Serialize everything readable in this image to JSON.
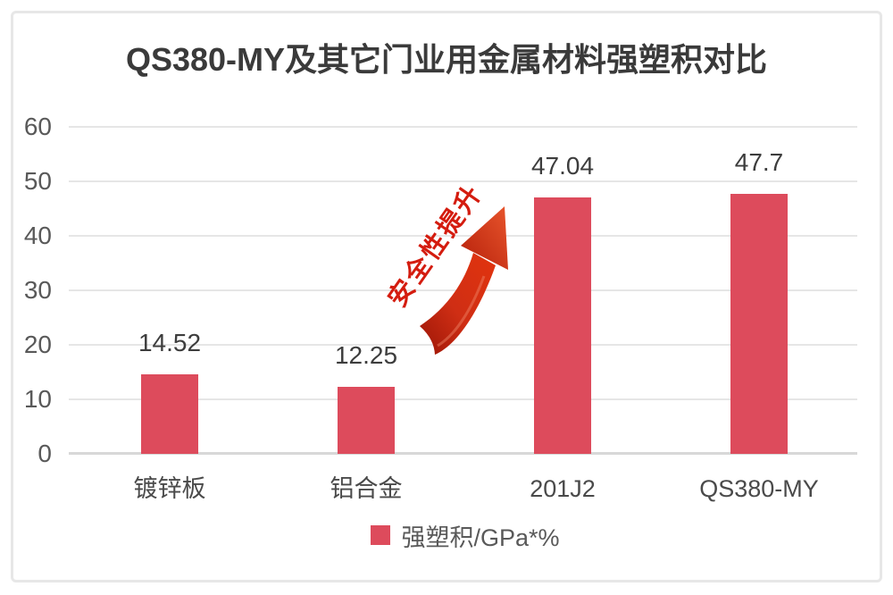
{
  "frame": {
    "border_color": "#e7e7e7",
    "background": "#ffffff"
  },
  "chart_data": {
    "type": "bar",
    "title": "QS380-MY及其它门业用金属材料强塑积对比",
    "categories": [
      "镀锌板",
      "铝合金",
      "201J2",
      "QS380-MY"
    ],
    "values": [
      14.52,
      12.25,
      47.04,
      47.7
    ],
    "value_labels": [
      "14.52",
      "12.25",
      "47.04",
      "47.7"
    ],
    "xlabel": "",
    "ylabel": "",
    "ylim": [
      0,
      60
    ],
    "yticks": [
      0,
      10,
      20,
      30,
      40,
      50,
      60
    ],
    "grid": true,
    "bar_color": "#DD4B5C",
    "tick_label_color": "#595959",
    "value_label_color": "#3d3d3d",
    "legend": {
      "position": "bottom",
      "swatch_color": "#DD4B5C",
      "label": "强塑积/GPa*%"
    },
    "annotation": {
      "text": "安全性提升",
      "color": "#d41c0f",
      "rotation_deg": -55,
      "arrow": "curved-red-arrow-up-right"
    }
  }
}
